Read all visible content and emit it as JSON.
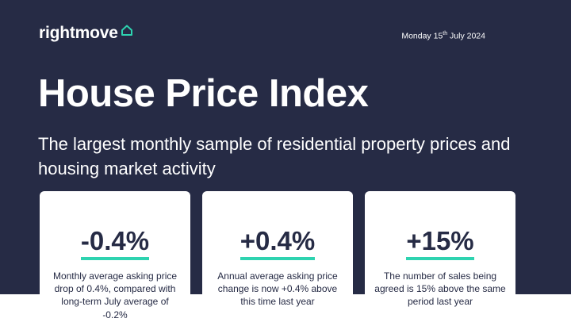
{
  "header": {
    "logo_text": "rightmove",
    "logo_icon": "house-outline-icon",
    "date_prefix": "Monday 15",
    "date_suffix": "th",
    "date_rest": " July 2024"
  },
  "title": "House Price Index",
  "subtitle": "The largest monthly sample of residential property prices and housing market activity",
  "stats": [
    {
      "value": "-0.4%",
      "description": "Monthly average asking price drop of 0.4%, compared with long-term July average of -0.2%"
    },
    {
      "value": "+0.4%",
      "description": "Annual average asking price change is now +0.4% above this time last year"
    },
    {
      "value": "+15%",
      "description": "The number of sales being agreed is 15% above the same period last year"
    }
  ],
  "colors": {
    "background": "#262b45",
    "accent": "#2ed3b0",
    "card": "#ffffff"
  }
}
